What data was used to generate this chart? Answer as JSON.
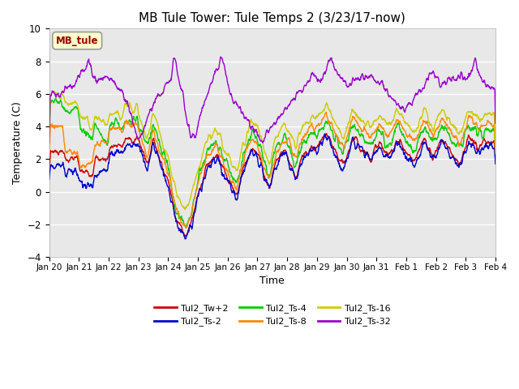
{
  "title": "MB Tule Tower: Tule Temps 2 (3/23/17-now)",
  "xlabel": "Time",
  "ylabel": "Temperature (C)",
  "ylim": [
    -4,
    10
  ],
  "yticks": [
    -4,
    -2,
    0,
    2,
    4,
    6,
    8,
    10
  ],
  "xlim": [
    0,
    15
  ],
  "xtick_labels": [
    "Jan 20",
    "Jan 21",
    "Jan 22",
    "Jan 23",
    "Jan 24",
    "Jan 25",
    "Jan 26",
    "Jan 27",
    "Jan 28",
    "Jan 29",
    "Jan 30",
    "Jan 31",
    "Feb 1",
    "Feb 2",
    "Feb 3",
    "Feb 4"
  ],
  "legend_label": "MB_tule",
  "series_labels": [
    "Tul2_Tw+2",
    "Tul2_Ts-2",
    "Tul2_Ts-4",
    "Tul2_Ts-8",
    "Tul2_Ts-16",
    "Tul2_Ts-32"
  ],
  "series_colors": [
    "#cc0000",
    "#0000cc",
    "#00cc00",
    "#ff8800",
    "#cccc00",
    "#9900cc"
  ],
  "background_color": "#ffffff",
  "plot_bg_color": "#e8e8e8",
  "grid_color": "#ffffff",
  "title_fontsize": 11,
  "axis_fontsize": 9,
  "legend_box_color": "#ffffcc",
  "legend_box_edge": "#999999",
  "legend_text_color": "#990000"
}
